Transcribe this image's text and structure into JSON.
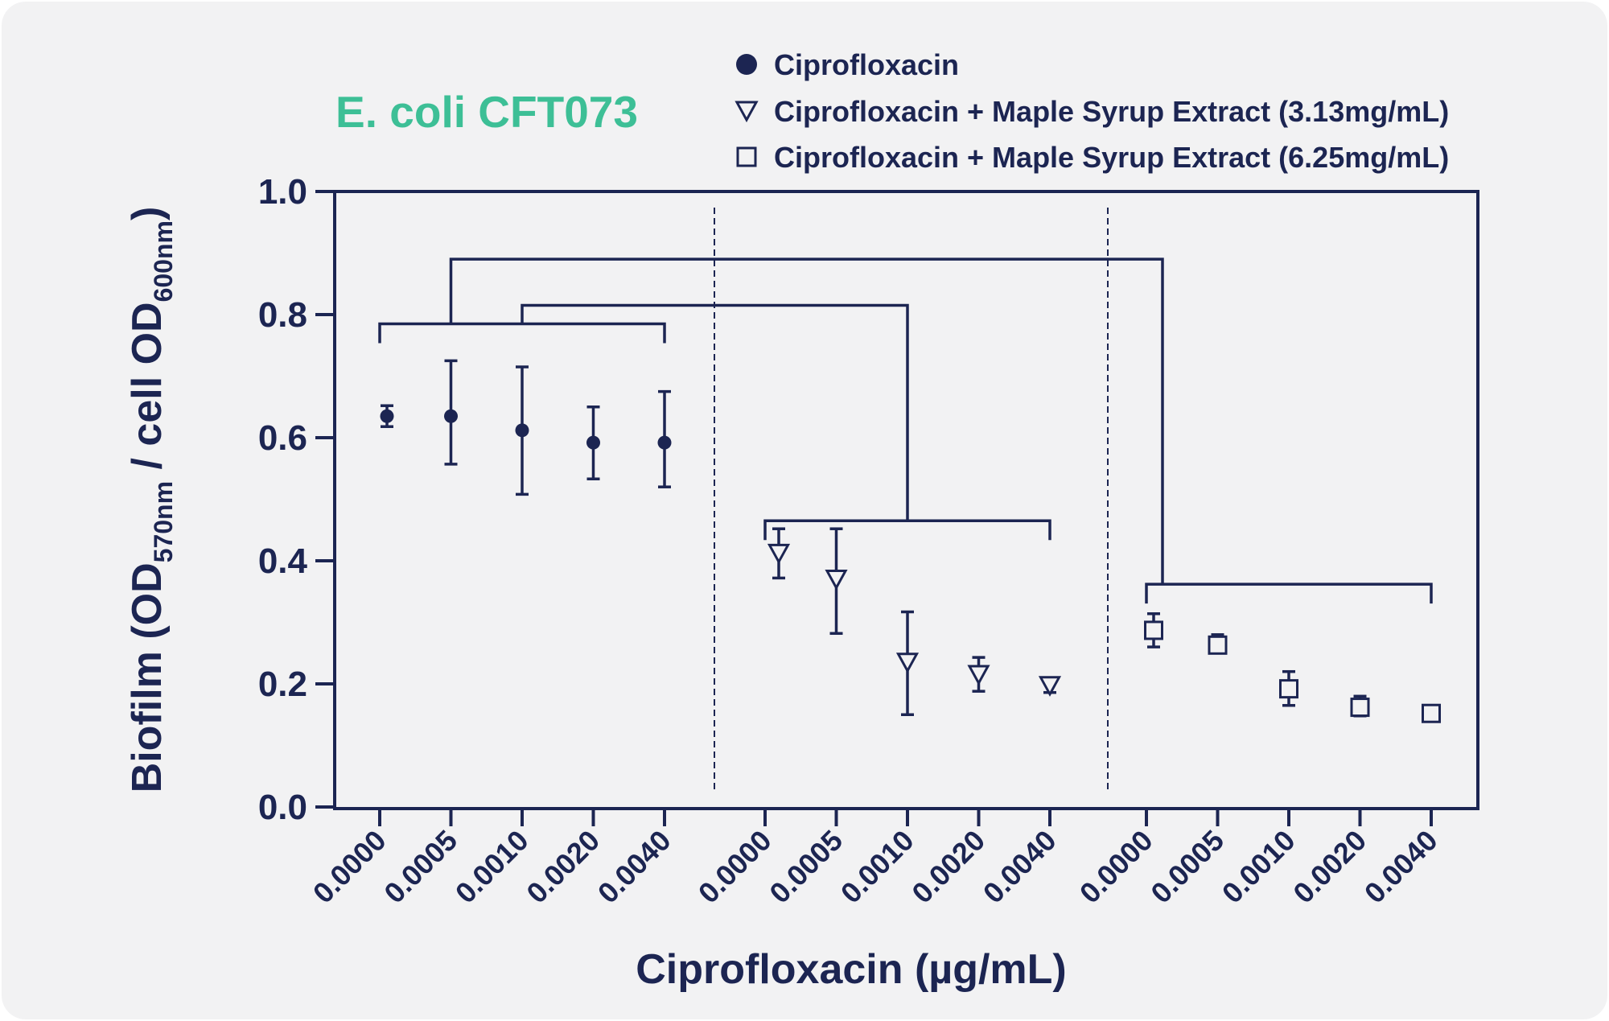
{
  "colors": {
    "background": "#f2f2f3",
    "ink": "#1c2552",
    "title": "#3dbf96"
  },
  "chart_data": {
    "type": "scatter",
    "title": "E. coli CFT073",
    "xlabel": "Ciprofloxacin (µg/mL)",
    "ylabel": {
      "prefix": "Biofilm (OD",
      "sub1": "570nm",
      "middle": " / cell OD",
      "sub2": "600nm",
      "suffix": ")"
    },
    "ylim": [
      0,
      1.0
    ],
    "yticks": [
      "0.0",
      "0.2",
      "0.4",
      "0.6",
      "0.8",
      "1.0"
    ],
    "grid": false,
    "legend_position": "top-right",
    "categories": [
      "0.0000",
      "0.0005",
      "0.0010",
      "0.0020",
      "0.0040"
    ],
    "series": [
      {
        "name": "Ciprofloxacin",
        "marker": "circle",
        "values": [
          0.635,
          0.635,
          0.612,
          0.592,
          0.592
        ],
        "err_low": [
          0.618,
          0.557,
          0.508,
          0.533,
          0.52
        ],
        "err_high": [
          0.652,
          0.725,
          0.715,
          0.65,
          0.675
        ]
      },
      {
        "name": "Ciprofloxacin + Maple Syrup Extract (3.13mg/mL)",
        "marker": "triangle-down",
        "values": [
          0.412,
          0.37,
          0.235,
          0.215,
          0.197
        ],
        "err_low": [
          0.372,
          0.282,
          0.15,
          0.188,
          0.186
        ],
        "err_high": [
          0.452,
          0.452,
          0.317,
          0.243,
          0.208
        ]
      },
      {
        "name": "Ciprofloxacin + Maple Syrup Extract (6.25mg/mL)",
        "marker": "square",
        "values": [
          0.287,
          0.263,
          0.192,
          0.162,
          0.152
        ],
        "err_low": [
          0.26,
          0.25,
          0.165,
          0.148,
          0.145
        ],
        "err_high": [
          0.314,
          0.28,
          0.22,
          0.18,
          0.16
        ]
      }
    ],
    "brackets": [
      {
        "group": 0,
        "level": 0.785,
        "connect_to": null
      },
      {
        "group": 1,
        "level": 0.465,
        "connect_to": {
          "group": 0,
          "at_category": 2,
          "level": 0.815
        }
      },
      {
        "group": 2,
        "level": 0.362,
        "connect_to": {
          "group": 0,
          "at_category": 1,
          "level": 0.89
        }
      }
    ]
  }
}
